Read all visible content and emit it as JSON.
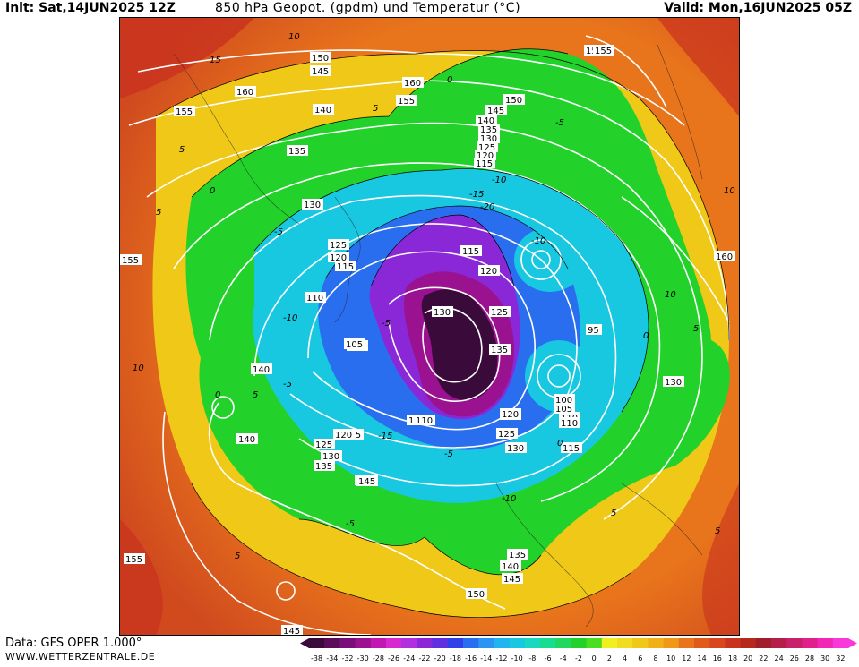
{
  "header": {
    "init": "Init: Sat,14JUN2025 12Z",
    "title": "850 hPa Geopot. (gpdm) und Temperatur (°C)",
    "valid": "Valid: Mon,16JUN2025 05Z"
  },
  "footer": {
    "data_source": "Data: GFS OPER 1.000°",
    "website": "WWW.WETTERZENTRALE.DE"
  },
  "map": {
    "geopotential_labels": [
      "150",
      "145",
      "155",
      "160",
      "155",
      "150",
      "145",
      "140",
      "135",
      "130",
      "125",
      "120",
      "115",
      "140",
      "135",
      "130",
      "125",
      "120",
      "115",
      "110",
      "105",
      "110",
      "115",
      "120",
      "125",
      "130",
      "135",
      "140",
      "145",
      "150",
      "155",
      "160",
      "130",
      "125",
      "120",
      "115",
      "110",
      "105",
      "100",
      "95",
      "110",
      "115",
      "120",
      "125",
      "130",
      "135",
      "140",
      "145",
      "150",
      "155",
      "160",
      "105",
      "110",
      "120",
      "125",
      "130",
      "135",
      "140",
      "145",
      "155",
      "145",
      "150"
    ],
    "temperature_labels": [
      "10",
      "15",
      "5",
      "5",
      "0",
      "-5",
      "-10",
      "-15",
      "-20",
      "-10",
      "-5",
      "0",
      "5",
      "10",
      "5",
      "-5",
      "-10",
      "-15",
      "-5",
      "0",
      "5",
      "10",
      "-10",
      "-5",
      "0",
      "5",
      "10",
      "5",
      "-5",
      "0",
      "5"
    ],
    "colors": {
      "warm": "#e8741c",
      "hot": "#c8321e",
      "yellow": "#f0dc20",
      "green": "#22d22a",
      "cyan": "#18c8e0",
      "blue": "#2a6ef0",
      "purple": "#8a28d8",
      "dark": "#3a0a3a"
    }
  },
  "legend": {
    "unit": "°C",
    "ticks": [
      "-38",
      "-34",
      "-32",
      "-30",
      "-28",
      "-26",
      "-24",
      "-22",
      "-20",
      "-18",
      "-16",
      "-14",
      "-12",
      "-10",
      "-8",
      "-6",
      "-4",
      "-2",
      "0",
      "2",
      "4",
      "6",
      "8",
      "10",
      "12",
      "14",
      "16",
      "18",
      "20",
      "22",
      "24",
      "26",
      "28",
      "30",
      "32"
    ],
    "colors": [
      "#3a0a3a",
      "#5a0e5a",
      "#7a0e78",
      "#9a1290",
      "#c018b0",
      "#d828d0",
      "#b030e0",
      "#8a28d8",
      "#6030e0",
      "#3040e8",
      "#2a6ef0",
      "#2a94f0",
      "#20b4f0",
      "#18c8e0",
      "#18d8c0",
      "#18dc90",
      "#20d860",
      "#22d22a",
      "#4cdc20",
      "#f0f020",
      "#f0dc20",
      "#f0c818",
      "#f0b018",
      "#f09818",
      "#e8741c",
      "#e05a1c",
      "#d8461e",
      "#c8321e",
      "#b4281e",
      "#a01e2a",
      "#b41e48",
      "#c8206a",
      "#e0208c",
      "#f028b4",
      "#f838d8"
    ]
  }
}
